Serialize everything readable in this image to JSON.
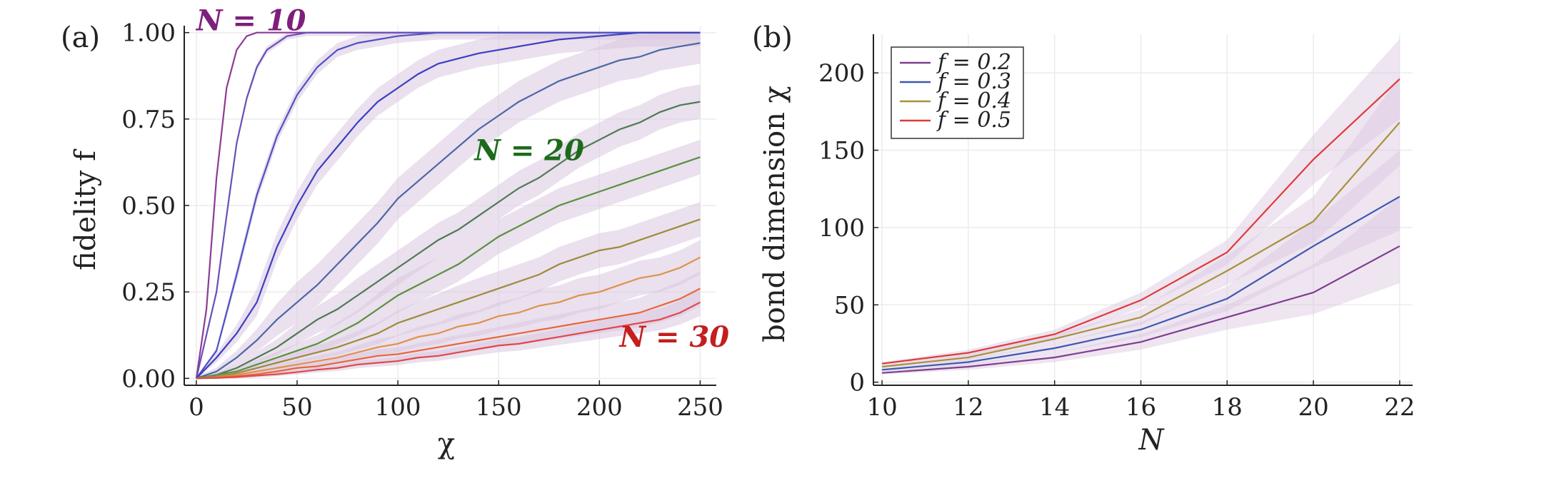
{
  "chart_data": [
    {
      "panel": "(a)",
      "type": "line",
      "xlabel": "χ",
      "ylabel": "fidelity f",
      "xlim": [
        -6,
        258
      ],
      "ylim": [
        -0.02,
        1.02
      ],
      "xticks": [
        0,
        50,
        100,
        150,
        200,
        250
      ],
      "xtick_labels": [
        "0",
        "50",
        "100",
        "150",
        "200",
        "250"
      ],
      "yticks": [
        0,
        0.25,
        0.5,
        0.75,
        1.0
      ],
      "ytick_labels": [
        "0.00",
        "0.25",
        "0.50",
        "0.75",
        "1.00"
      ],
      "grid": true,
      "legend": "none",
      "band_color": "#d9c6e0",
      "annotations": [
        {
          "text": "N = 10",
          "x": 0,
          "y": 1.035,
          "color": "#7d1f7b"
        },
        {
          "text": "N = 20",
          "x": 138,
          "y": 0.66,
          "color": "#1b6b1b"
        },
        {
          "text": "N = 30",
          "x": 210,
          "y": 0.12,
          "color": "#c41e1e"
        }
      ],
      "series": [
        {
          "color": "#8e3a96",
          "band": 0.0,
          "x": [
            0,
            5,
            10,
            15,
            20,
            25,
            30,
            40,
            250
          ],
          "y": [
            0,
            0.2,
            0.58,
            0.84,
            0.95,
            0.99,
            1.0,
            1.0,
            1.0
          ]
        },
        {
          "color": "#6a4fb8",
          "band": 0.01,
          "x": [
            0,
            10,
            15,
            20,
            25,
            30,
            35,
            45,
            55,
            60,
            250
          ],
          "y": [
            0,
            0.25,
            0.47,
            0.68,
            0.81,
            0.9,
            0.95,
            0.99,
            1.0,
            1.0,
            1.0
          ]
        },
        {
          "color": "#4d52c4",
          "band": 0.02,
          "x": [
            0,
            10,
            20,
            30,
            40,
            50,
            60,
            70,
            80,
            90,
            100,
            120,
            250
          ],
          "y": [
            0,
            0.08,
            0.3,
            0.53,
            0.7,
            0.82,
            0.9,
            0.95,
            0.97,
            0.98,
            0.99,
            1.0,
            1.0
          ]
        },
        {
          "color": "#3a3fc2",
          "band": 0.04,
          "x": [
            0,
            10,
            20,
            30,
            35,
            40,
            50,
            60,
            70,
            80,
            90,
            100,
            110,
            120,
            140,
            160,
            180,
            200,
            220,
            250
          ],
          "y": [
            0,
            0.06,
            0.13,
            0.22,
            0.3,
            0.38,
            0.5,
            0.6,
            0.67,
            0.74,
            0.8,
            0.84,
            0.88,
            0.91,
            0.94,
            0.96,
            0.98,
            0.99,
            1.0,
            1.0
          ]
        },
        {
          "color": "#4a67a6",
          "band": 0.06,
          "x": [
            0,
            10,
            20,
            30,
            40,
            50,
            60,
            70,
            80,
            90,
            100,
            110,
            120,
            130,
            140,
            150,
            160,
            170,
            180,
            190,
            200,
            210,
            220,
            230,
            240,
            250
          ],
          "y": [
            0,
            0.02,
            0.06,
            0.11,
            0.17,
            0.22,
            0.27,
            0.33,
            0.39,
            0.45,
            0.52,
            0.57,
            0.62,
            0.67,
            0.72,
            0.76,
            0.8,
            0.83,
            0.86,
            0.88,
            0.9,
            0.92,
            0.93,
            0.95,
            0.96,
            0.97
          ]
        },
        {
          "color": "#4e7a52",
          "band": 0.05,
          "x": [
            0,
            10,
            20,
            30,
            40,
            50,
            60,
            70,
            80,
            90,
            100,
            110,
            120,
            130,
            140,
            150,
            160,
            170,
            180,
            190,
            200,
            210,
            220,
            230,
            240,
            250
          ],
          "y": [
            0,
            0.01,
            0.03,
            0.06,
            0.09,
            0.13,
            0.17,
            0.2,
            0.24,
            0.28,
            0.32,
            0.36,
            0.4,
            0.43,
            0.47,
            0.51,
            0.55,
            0.58,
            0.62,
            0.66,
            0.69,
            0.72,
            0.74,
            0.77,
            0.79,
            0.8
          ]
        },
        {
          "color": "#5b8f3e",
          "band": 0.05,
          "x": [
            0,
            10,
            20,
            30,
            40,
            50,
            60,
            70,
            80,
            90,
            100,
            110,
            120,
            130,
            140,
            150,
            160,
            170,
            180,
            190,
            200,
            210,
            220,
            230,
            240,
            250
          ],
          "y": [
            0,
            0.01,
            0.02,
            0.04,
            0.06,
            0.08,
            0.1,
            0.13,
            0.16,
            0.2,
            0.24,
            0.27,
            0.3,
            0.33,
            0.37,
            0.41,
            0.44,
            0.47,
            0.5,
            0.52,
            0.54,
            0.56,
            0.58,
            0.6,
            0.62,
            0.64
          ]
        },
        {
          "color": "#9c8a3a",
          "band": 0.05,
          "x": [
            0,
            10,
            20,
            30,
            40,
            50,
            60,
            70,
            80,
            90,
            100,
            110,
            120,
            130,
            140,
            150,
            160,
            170,
            180,
            190,
            200,
            210,
            220,
            230,
            240,
            250
          ],
          "y": [
            0,
            0.005,
            0.015,
            0.03,
            0.045,
            0.06,
            0.075,
            0.09,
            0.11,
            0.13,
            0.16,
            0.18,
            0.2,
            0.22,
            0.24,
            0.26,
            0.28,
            0.3,
            0.33,
            0.35,
            0.37,
            0.38,
            0.4,
            0.42,
            0.44,
            0.46
          ]
        },
        {
          "color": "#e0914a",
          "band": 0.05,
          "x": [
            0,
            10,
            20,
            30,
            40,
            50,
            60,
            70,
            80,
            90,
            100,
            110,
            120,
            130,
            140,
            150,
            160,
            170,
            180,
            190,
            200,
            210,
            220,
            230,
            240,
            250
          ],
          "y": [
            0,
            0.003,
            0.01,
            0.02,
            0.03,
            0.04,
            0.05,
            0.06,
            0.075,
            0.09,
            0.1,
            0.12,
            0.13,
            0.15,
            0.16,
            0.18,
            0.19,
            0.21,
            0.22,
            0.24,
            0.25,
            0.27,
            0.29,
            0.3,
            0.32,
            0.35
          ]
        },
        {
          "color": "#e8663a",
          "band": 0.05,
          "x": [
            0,
            10,
            20,
            30,
            40,
            50,
            60,
            70,
            80,
            90,
            100,
            110,
            120,
            130,
            140,
            150,
            160,
            170,
            180,
            190,
            200,
            210,
            220,
            230,
            240,
            250
          ],
          "y": [
            0,
            0.002,
            0.006,
            0.012,
            0.02,
            0.03,
            0.035,
            0.045,
            0.055,
            0.065,
            0.07,
            0.08,
            0.09,
            0.1,
            0.11,
            0.12,
            0.13,
            0.14,
            0.15,
            0.16,
            0.17,
            0.18,
            0.19,
            0.21,
            0.23,
            0.26
          ]
        },
        {
          "color": "#e04848",
          "band": 0.04,
          "x": [
            0,
            10,
            20,
            30,
            40,
            50,
            60,
            70,
            80,
            90,
            100,
            110,
            120,
            130,
            140,
            150,
            160,
            170,
            180,
            190,
            200,
            210,
            220,
            230,
            240,
            250
          ],
          "y": [
            0,
            0.001,
            0.004,
            0.008,
            0.012,
            0.018,
            0.025,
            0.03,
            0.04,
            0.045,
            0.05,
            0.06,
            0.065,
            0.075,
            0.085,
            0.095,
            0.1,
            0.11,
            0.12,
            0.13,
            0.14,
            0.15,
            0.16,
            0.17,
            0.19,
            0.22
          ]
        }
      ]
    },
    {
      "panel": "(b)",
      "type": "line",
      "xlabel": "N",
      "ylabel": "bond dimension χ",
      "xlim": [
        9.8,
        22.3
      ],
      "ylim": [
        -2,
        225
      ],
      "xticks": [
        10,
        12,
        14,
        16,
        18,
        20,
        22
      ],
      "xtick_labels": [
        "10",
        "12",
        "14",
        "16",
        "18",
        "20",
        "22"
      ],
      "yticks": [
        0,
        50,
        100,
        150,
        200
      ],
      "ytick_labels": [
        "0",
        "50",
        "100",
        "150",
        "200"
      ],
      "grid": true,
      "legend": "top-left",
      "band_color": "#d9c6e0",
      "x": [
        10,
        12,
        14,
        16,
        18,
        20,
        22
      ],
      "series": [
        {
          "name": "f = 0.2",
          "color": "#7e3f8f",
          "values": [
            6,
            10,
            16,
            26,
            42,
            58,
            88
          ],
          "band_lo": [
            5,
            8,
            13,
            21,
            34,
            44,
            64
          ],
          "band_hi": [
            7,
            12,
            19,
            31,
            50,
            76,
            120
          ]
        },
        {
          "name": "f = 0.3",
          "color": "#3f58b0",
          "values": [
            8,
            13,
            22,
            34,
            54,
            88,
            120
          ],
          "band_lo": [
            7,
            11,
            19,
            29,
            46,
            74,
            98
          ],
          "band_hi": [
            9,
            15,
            25,
            39,
            62,
            104,
            150
          ]
        },
        {
          "name": "f = 0.4",
          "color": "#a8913a",
          "values": [
            10,
            16,
            28,
            42,
            72,
            104,
            168
          ],
          "band_lo": [
            9,
            14,
            25,
            37,
            63,
            90,
            140
          ],
          "band_hi": [
            11,
            18,
            31,
            47,
            82,
            120,
            198
          ]
        },
        {
          "name": "f = 0.5",
          "color": "#e03a3a",
          "values": [
            12,
            19,
            31,
            53,
            84,
            144,
            196
          ],
          "band_lo": [
            11,
            17,
            28,
            48,
            76,
            128,
            170
          ],
          "band_hi": [
            13,
            21,
            34,
            58,
            92,
            160,
            222
          ]
        }
      ]
    }
  ]
}
